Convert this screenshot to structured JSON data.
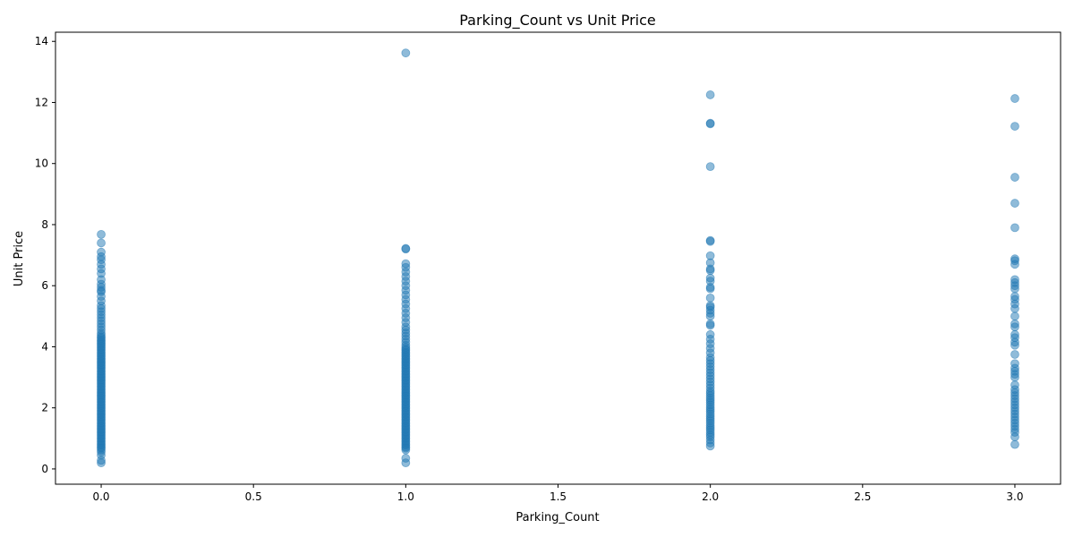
{
  "chart_data": {
    "type": "scatter",
    "title": "Parking_Count vs Unit Price",
    "xlabel": "Parking_Count",
    "ylabel": "Unit Price",
    "xlim": [
      -0.15,
      3.15
    ],
    "ylim": [
      -0.5,
      14.3
    ],
    "xticks": [
      0.0,
      0.5,
      1.0,
      1.5,
      2.0,
      2.5,
      3.0
    ],
    "xtick_labels": [
      "0.0",
      "0.5",
      "1.0",
      "1.5",
      "2.0",
      "2.5",
      "3.0"
    ],
    "yticks": [
      0,
      2,
      4,
      6,
      8,
      10,
      12,
      14
    ],
    "ytick_labels": [
      "0",
      "2",
      "4",
      "6",
      "8",
      "10",
      "12",
      "14"
    ],
    "grid": false,
    "marker_color": "#1f77b4",
    "marker_alpha": 0.5,
    "series": [
      {
        "x": 0,
        "y": [
          0.2,
          0.28,
          0.45,
          0.55,
          0.62,
          0.68,
          0.72,
          0.78,
          0.82,
          0.88,
          0.92,
          0.98,
          1.02,
          1.08,
          1.12,
          1.18,
          1.22,
          1.28,
          1.32,
          1.38,
          1.42,
          1.48,
          1.52,
          1.58,
          1.62,
          1.68,
          1.72,
          1.78,
          1.82,
          1.88,
          1.92,
          1.98,
          2.02,
          2.08,
          2.12,
          2.18,
          2.22,
          2.28,
          2.32,
          2.38,
          2.42,
          2.48,
          2.52,
          2.58,
          2.62,
          2.68,
          2.72,
          2.78,
          2.82,
          2.88,
          2.92,
          2.98,
          3.02,
          3.08,
          3.12,
          3.18,
          3.22,
          3.28,
          3.32,
          3.38,
          3.42,
          3.48,
          3.52,
          3.58,
          3.62,
          3.68,
          3.72,
          3.78,
          3.82,
          3.88,
          3.92,
          3.98,
          4.02,
          4.08,
          4.12,
          4.18,
          4.22,
          4.28,
          4.32,
          4.38,
          4.45,
          4.55,
          4.65,
          4.75,
          4.85,
          4.95,
          5.05,
          5.15,
          5.25,
          5.35,
          5.5,
          5.65,
          5.8,
          5.85,
          5.95,
          6.05,
          6.2,
          6.4,
          6.55,
          6.7,
          6.85,
          6.95,
          7.1,
          7.4,
          7.68
        ]
      },
      {
        "x": 1,
        "y": [
          0.2,
          0.35,
          0.62,
          0.68,
          0.72,
          0.78,
          0.82,
          0.88,
          0.92,
          0.98,
          1.02,
          1.08,
          1.12,
          1.18,
          1.22,
          1.28,
          1.32,
          1.38,
          1.42,
          1.48,
          1.52,
          1.58,
          1.62,
          1.68,
          1.72,
          1.78,
          1.82,
          1.88,
          1.92,
          1.98,
          2.02,
          2.08,
          2.12,
          2.18,
          2.22,
          2.28,
          2.32,
          2.38,
          2.42,
          2.48,
          2.52,
          2.58,
          2.62,
          2.68,
          2.72,
          2.78,
          2.82,
          2.88,
          2.92,
          2.98,
          3.02,
          3.08,
          3.12,
          3.18,
          3.22,
          3.28,
          3.32,
          3.38,
          3.42,
          3.48,
          3.52,
          3.58,
          3.62,
          3.68,
          3.72,
          3.78,
          3.82,
          3.88,
          3.92,
          3.98,
          4.05,
          4.15,
          4.25,
          4.35,
          4.45,
          4.55,
          4.65,
          4.8,
          4.95,
          5.1,
          5.25,
          5.4,
          5.55,
          5.7,
          5.85,
          6.0,
          6.15,
          6.3,
          6.45,
          6.6,
          6.72,
          7.2,
          7.22,
          13.62
        ]
      },
      {
        "x": 2,
        "y": [
          0.75,
          0.85,
          0.95,
          1.05,
          1.12,
          1.2,
          1.28,
          1.35,
          1.42,
          1.5,
          1.58,
          1.65,
          1.72,
          1.8,
          1.88,
          1.95,
          2.02,
          2.1,
          2.18,
          2.25,
          2.32,
          2.4,
          2.48,
          2.55,
          2.65,
          2.75,
          2.85,
          2.95,
          3.05,
          3.15,
          3.25,
          3.35,
          3.45,
          3.55,
          3.65,
          3.8,
          3.95,
          4.1,
          4.25,
          4.4,
          4.7,
          4.75,
          5.0,
          5.1,
          5.2,
          5.3,
          5.35,
          5.6,
          5.9,
          5.95,
          6.15,
          6.25,
          6.5,
          6.55,
          6.75,
          6.98,
          7.45,
          7.48,
          9.9,
          11.3,
          11.32,
          12.25
        ]
      },
      {
        "x": 3,
        "y": [
          0.8,
          1.05,
          1.2,
          1.3,
          1.4,
          1.5,
          1.6,
          1.7,
          1.8,
          1.9,
          2.0,
          2.1,
          2.2,
          2.3,
          2.4,
          2.5,
          2.6,
          2.75,
          3.0,
          3.1,
          3.2,
          3.3,
          3.45,
          3.75,
          4.05,
          4.15,
          4.3,
          4.4,
          4.65,
          4.75,
          5.0,
          5.25,
          5.4,
          5.55,
          5.65,
          5.9,
          6.0,
          6.1,
          6.2,
          6.7,
          6.82,
          6.88,
          7.9,
          8.7,
          9.55,
          11.22,
          12.13
        ]
      }
    ]
  }
}
